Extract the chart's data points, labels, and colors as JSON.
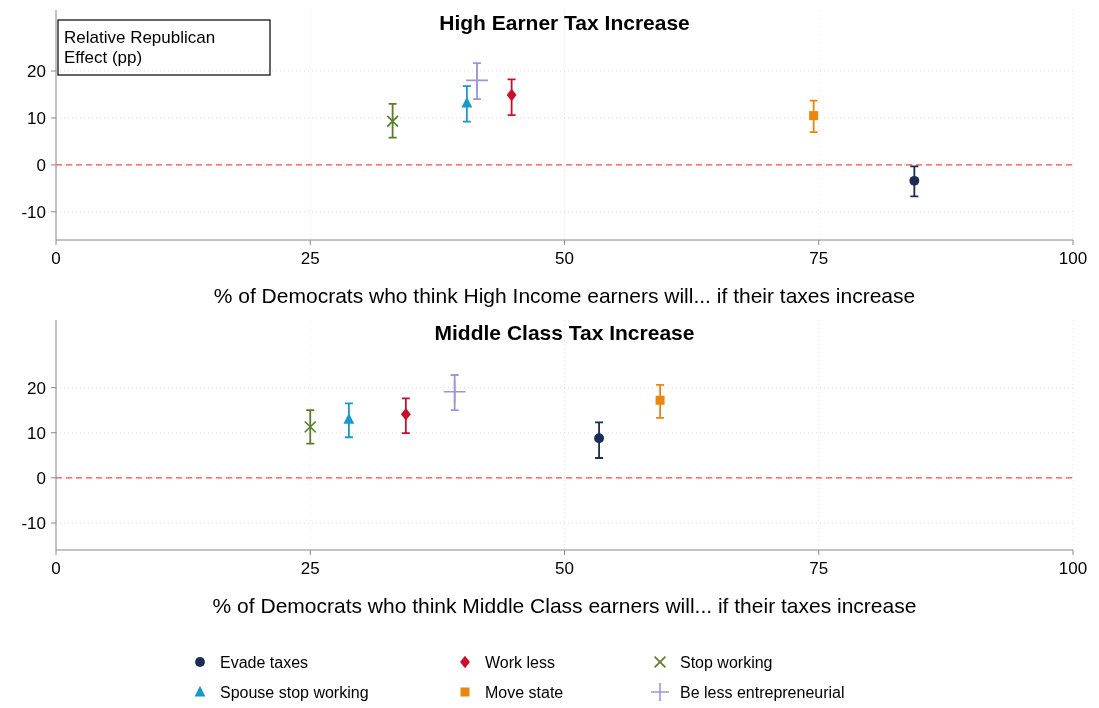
{
  "chart_data": [
    {
      "type": "scatter",
      "title": "High Earner Tax Increase",
      "xlabel": "% of Democrats who think High Income earners will... if their taxes increase",
      "ylabel": "Relative Republican Effect (pp)",
      "xlim": [
        0,
        100
      ],
      "xticks": [
        0,
        25,
        50,
        75,
        100
      ],
      "ylim": [
        -16,
        33
      ],
      "yticks": [
        -10,
        0,
        10,
        20
      ],
      "grid": true,
      "legend": "bottom",
      "ref_lines": [
        {
          "axis": "y",
          "value": 0,
          "color": "#ff4d4d",
          "line_style": "dashed"
        }
      ],
      "series": [
        {
          "name": "Evade taxes",
          "color": "#1c2c54",
          "marker": "circle",
          "x": [
            84.4
          ],
          "values": [
            -3.4
          ],
          "errors": [
            [
              -6.7,
              -0.3
            ]
          ]
        },
        {
          "name": "Work less",
          "color": "#c8102e",
          "marker": "diamond",
          "x": [
            44.8
          ],
          "values": [
            14.9
          ],
          "errors": [
            [
              10.6,
              18.2
            ]
          ]
        },
        {
          "name": "Stop working",
          "color": "#5a7d2a",
          "marker": "cross",
          "x": [
            33.1
          ],
          "values": [
            9.3
          ],
          "errors": [
            [
              5.8,
              13.0
            ]
          ]
        },
        {
          "name": "Spouse stop working",
          "color": "#1a99c9",
          "marker": "triangle",
          "x": [
            40.4
          ],
          "values": [
            13.2
          ],
          "errors": [
            [
              9.2,
              16.8
            ]
          ]
        },
        {
          "name": "Move state",
          "color": "#e8870e",
          "marker": "square",
          "x": [
            74.5
          ],
          "values": [
            10.5
          ],
          "errors": [
            [
              7.0,
              13.7
            ]
          ]
        },
        {
          "name": "Be less entrepreneurial",
          "color": "#9f95dc",
          "x": [
            41.4
          ],
          "values": [
            18.0
          ],
          "errors": [
            [
              14.0,
              21.7
            ]
          ]
        }
      ]
    },
    {
      "type": "scatter",
      "title": "Middle Class Tax Increase",
      "xlabel": "% of Democrats who think Middle Class earners will... if their taxes increase",
      "xlim": [
        0,
        100
      ],
      "xticks": [
        0,
        25,
        50,
        75,
        100
      ],
      "ylim": [
        -16,
        35
      ],
      "yticks": [
        -10,
        0,
        10,
        20
      ],
      "grid": true,
      "ref_lines": [
        {
          "axis": "y",
          "value": 0,
          "color": "#ff4d4d",
          "line_style": "dashed"
        }
      ],
      "series": [
        {
          "color": "#1c2c54",
          "marker": "circle",
          "x": [
            53.4
          ],
          "values": [
            8.8
          ],
          "errors": [
            [
              4.4,
              12.3
            ]
          ]
        },
        {
          "color": "#c8102e",
          "marker": "diamond",
          "x": [
            34.4
          ],
          "values": [
            14.1
          ],
          "errors": [
            [
              9.9,
              17.6
            ]
          ]
        },
        {
          "color": "#5a7d2a",
          "marker": "cross",
          "x": [
            25.0
          ],
          "values": [
            11.3
          ],
          "errors": [
            [
              7.6,
              15.0
            ]
          ]
        },
        {
          "color": "#1a99c9",
          "marker": "triangle",
          "x": [
            28.8
          ],
          "values": [
            13.0
          ],
          "errors": [
            [
              9.0,
              16.5
            ]
          ]
        },
        {
          "color": "#e8870e",
          "marker": "square",
          "x": [
            59.4
          ],
          "values": [
            17.2
          ],
          "errors": [
            [
              13.3,
              20.6
            ]
          ]
        },
        {
          "color": "#9f95dc",
          "x": [
            39.2
          ],
          "values": [
            19.1
          ],
          "errors": [
            [
              15.0,
              22.8
            ]
          ]
        }
      ]
    }
  ]
}
